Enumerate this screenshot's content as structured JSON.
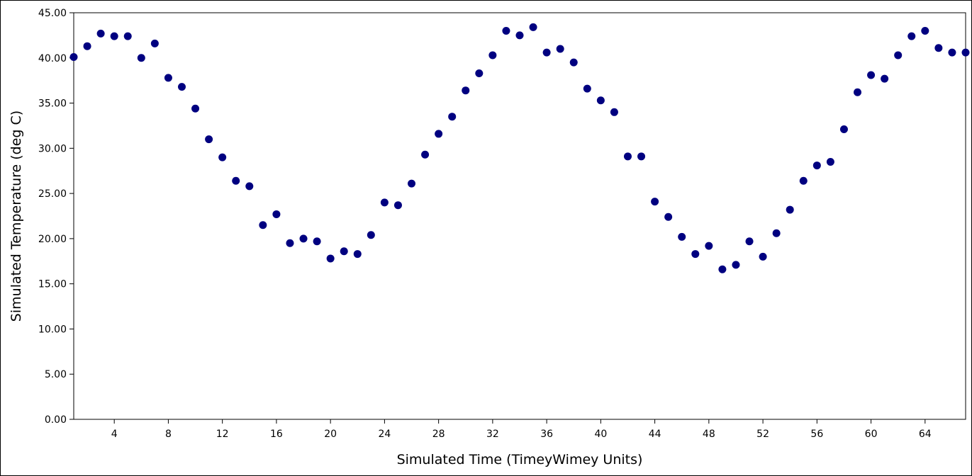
{
  "chart_data": {
    "type": "scatter",
    "title": "",
    "xlabel": "Simulated Time (TimeyWimey Units)",
    "ylabel": "Simulated Temperature (deg C)",
    "xlim": [
      1,
      67
    ],
    "ylim": [
      0,
      45
    ],
    "x_ticks": [
      4,
      8,
      12,
      16,
      20,
      24,
      28,
      32,
      36,
      40,
      44,
      48,
      52,
      56,
      60,
      64
    ],
    "y_ticks": [
      "0.00",
      "5.00",
      "10.00",
      "15.00",
      "20.00",
      "25.00",
      "30.00",
      "35.00",
      "40.00",
      "45.00"
    ],
    "grid": false,
    "legend": "none",
    "marker_color": "#000080",
    "series": [
      {
        "x": [
          1,
          2,
          3,
          4,
          5,
          6,
          7,
          8,
          9,
          10,
          11,
          12,
          13,
          14,
          15,
          16,
          17,
          18,
          19,
          20,
          21,
          22,
          23,
          24,
          25,
          26,
          27,
          28,
          29,
          30,
          31,
          32,
          33,
          34,
          35,
          36,
          37,
          38,
          39,
          40,
          41,
          42,
          43,
          44,
          45,
          46,
          47,
          48,
          49,
          50,
          51,
          52,
          53,
          54,
          55,
          56,
          57,
          58,
          59,
          60,
          61,
          62,
          63,
          64,
          65,
          66,
          67
        ],
        "y": [
          40.1,
          41.3,
          42.7,
          42.4,
          42.4,
          40.0,
          41.6,
          37.8,
          36.8,
          34.4,
          31.0,
          29.0,
          26.4,
          25.8,
          21.5,
          22.7,
          19.5,
          20.0,
          19.7,
          17.8,
          18.6,
          18.3,
          20.4,
          24.0,
          23.7,
          26.1,
          29.3,
          31.6,
          33.5,
          36.4,
          38.3,
          40.3,
          43.0,
          42.5,
          43.4,
          40.6,
          41.0,
          39.5,
          36.6,
          35.3,
          34.0,
          29.1,
          29.1,
          24.1,
          22.4,
          20.2,
          18.3,
          19.2,
          16.6,
          17.1,
          19.7,
          18.0,
          20.6,
          23.2,
          26.4,
          28.1,
          28.5,
          32.1,
          36.2,
          38.1,
          37.7,
          40.3,
          42.4,
          43.0,
          41.1,
          40.6,
          40.6
        ]
      }
    ]
  }
}
